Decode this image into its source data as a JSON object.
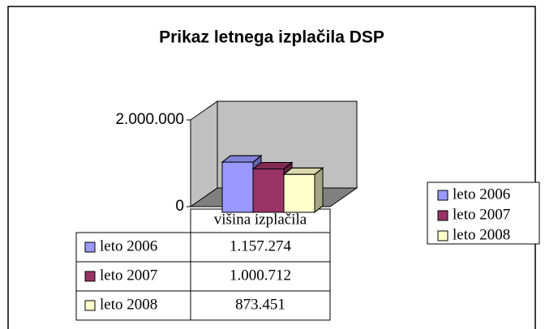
{
  "chart_data": {
    "type": "bar3d",
    "title": "Prikaz letnega izplačila DSP",
    "categories": [
      "višina izplačila"
    ],
    "series": [
      {
        "name": "leto 2006",
        "color": "#9999ff",
        "values": [
          1157274
        ],
        "value_labels": [
          "1.157.274"
        ]
      },
      {
        "name": "leto 2007",
        "color": "#993366",
        "values": [
          1000712
        ],
        "value_labels": [
          "1.000.712"
        ]
      },
      {
        "name": "leto 2008",
        "color": "#ffffcc",
        "values": [
          873451
        ],
        "value_labels": [
          "873.451"
        ]
      }
    ],
    "ylim": [
      0,
      2000000
    ],
    "yticks": [
      {
        "value": 0,
        "label": "0"
      },
      {
        "value": 2000000,
        "label": "2.000.000"
      }
    ],
    "legend": "right",
    "data_table": true
  }
}
